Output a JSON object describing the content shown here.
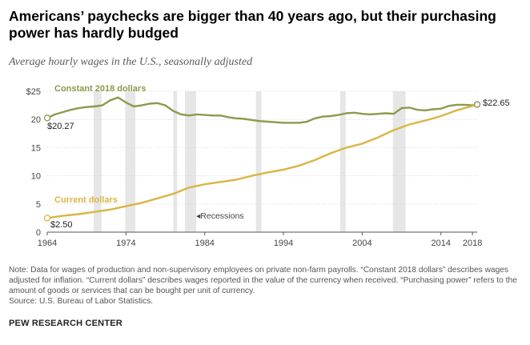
{
  "title": "Americans’ paychecks are bigger than 40 years ago, but their purchasing power has hardly budged",
  "subtitle": "Average hourly wages in the U.S., seasonally adjusted",
  "note": "Note: Data for wages of production and non-supervisory employees on private non-farm payrolls. “Constant 2018 dollars” describes wages adjusted for inflation. “Current dollars” describes wages reported in the value of the currency when received. “Purchasing power” refers to the amount of goods or services that can be bought per unit of currency.",
  "source": "Source: U.S. Bureau of Labor Statistics.",
  "credit": "PEW RESEARCH CENTER",
  "colors": {
    "constant": "#8a9b4c",
    "current": "#d9b544",
    "recession": "#e6e6e6"
  },
  "chart_data": {
    "type": "line",
    "title": "Americans’ paychecks are bigger than 40 years ago, but their purchasing power has hardly budged",
    "subtitle": "Average hourly wages in the U.S., seasonally adjusted",
    "xlim": [
      1964,
      2018.6
    ],
    "ylim": [
      0,
      25
    ],
    "x_ticks": [
      1964,
      1974,
      1984,
      1994,
      2004,
      2014,
      2018
    ],
    "y_ticks": [
      {
        "value": 0,
        "label": "0"
      },
      {
        "value": 5,
        "label": "5"
      },
      {
        "value": 10,
        "label": "10"
      },
      {
        "value": 15,
        "label": "15"
      },
      {
        "value": 20,
        "label": "20"
      },
      {
        "value": 25,
        "label": "$25"
      }
    ],
    "grid": "horizontal",
    "recessions": [
      {
        "start": 1969.9,
        "end": 1970.9
      },
      {
        "start": 1973.9,
        "end": 1975.2
      },
      {
        "start": 1980.0,
        "end": 1980.5
      },
      {
        "start": 1981.5,
        "end": 1982.9
      },
      {
        "start": 1990.5,
        "end": 1991.2
      },
      {
        "start": 2001.2,
        "end": 2001.9
      },
      {
        "start": 2007.9,
        "end": 2009.5
      }
    ],
    "recession_label": "Recessions",
    "series": [
      {
        "name": "Constant 2018 dollars",
        "start_label": "$20.27",
        "end_label": "$22.65",
        "points": [
          [
            1964,
            20.27
          ],
          [
            1965,
            20.9
          ],
          [
            1966,
            21.3
          ],
          [
            1967,
            21.7
          ],
          [
            1968,
            22.0
          ],
          [
            1969,
            22.2
          ],
          [
            1970,
            22.3
          ],
          [
            1971,
            22.5
          ],
          [
            1972,
            23.4
          ],
          [
            1973,
            23.9
          ],
          [
            1974,
            23.0
          ],
          [
            1975,
            22.3
          ],
          [
            1976,
            22.5
          ],
          [
            1977,
            22.8
          ],
          [
            1978,
            22.9
          ],
          [
            1979,
            22.5
          ],
          [
            1980,
            21.5
          ],
          [
            1981,
            20.9
          ],
          [
            1982,
            20.7
          ],
          [
            1983,
            20.9
          ],
          [
            1984,
            20.8
          ],
          [
            1985,
            20.7
          ],
          [
            1986,
            20.7
          ],
          [
            1987,
            20.4
          ],
          [
            1988,
            20.2
          ],
          [
            1989,
            20.1
          ],
          [
            1990,
            19.9
          ],
          [
            1991,
            19.7
          ],
          [
            1992,
            19.6
          ],
          [
            1993,
            19.5
          ],
          [
            1994,
            19.4
          ],
          [
            1995,
            19.4
          ],
          [
            1996,
            19.4
          ],
          [
            1997,
            19.6
          ],
          [
            1998,
            20.2
          ],
          [
            1999,
            20.5
          ],
          [
            2000,
            20.6
          ],
          [
            2001,
            20.8
          ],
          [
            2002,
            21.1
          ],
          [
            2003,
            21.2
          ],
          [
            2004,
            21.0
          ],
          [
            2005,
            20.9
          ],
          [
            2006,
            21.0
          ],
          [
            2007,
            21.1
          ],
          [
            2008,
            21.0
          ],
          [
            2009,
            22.0
          ],
          [
            2010,
            22.1
          ],
          [
            2011,
            21.7
          ],
          [
            2012,
            21.6
          ],
          [
            2013,
            21.8
          ],
          [
            2014,
            21.9
          ],
          [
            2015,
            22.4
          ],
          [
            2016,
            22.6
          ],
          [
            2017,
            22.6
          ],
          [
            2018,
            22.5
          ],
          [
            2018.6,
            22.65
          ]
        ]
      },
      {
        "name": "Current dollars",
        "start_label": "$2.50",
        "points": [
          [
            1964,
            2.5
          ],
          [
            1966,
            2.9
          ],
          [
            1968,
            3.2
          ],
          [
            1970,
            3.6
          ],
          [
            1972,
            4.0
          ],
          [
            1974,
            4.6
          ],
          [
            1976,
            5.2
          ],
          [
            1978,
            6.0
          ],
          [
            1980,
            6.8
          ],
          [
            1982,
            7.9
          ],
          [
            1984,
            8.5
          ],
          [
            1986,
            8.9
          ],
          [
            1988,
            9.3
          ],
          [
            1990,
            10.0
          ],
          [
            1992,
            10.6
          ],
          [
            1994,
            11.1
          ],
          [
            1996,
            11.8
          ],
          [
            1998,
            12.8
          ],
          [
            2000,
            14.0
          ],
          [
            2002,
            15.0
          ],
          [
            2004,
            15.7
          ],
          [
            2006,
            16.8
          ],
          [
            2008,
            18.1
          ],
          [
            2010,
            19.1
          ],
          [
            2012,
            19.8
          ],
          [
            2014,
            20.6
          ],
          [
            2016,
            21.6
          ],
          [
            2018,
            22.4
          ],
          [
            2018.6,
            22.65
          ]
        ]
      }
    ]
  }
}
